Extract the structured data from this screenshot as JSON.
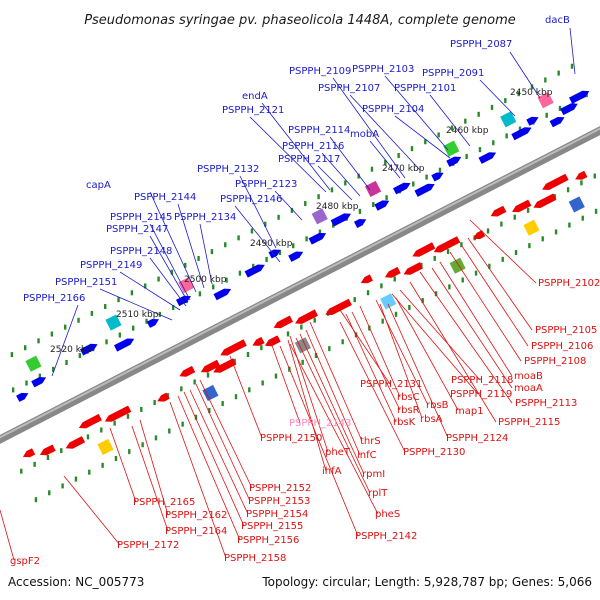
{
  "title": "Pseudomonas syringae pv. phaseolicola 1448A, complete genome",
  "footer": {
    "accession": "Accession: NC_005773",
    "topology": "Topology: circular; Length: 5,928,787 bp; Genes: 5,066"
  },
  "colors": {
    "forward_label": "#1a1acc",
    "reverse_label": "#dd1111",
    "rna_label": "#ff88bb",
    "forward_gene": "#0000ee",
    "reverse_gene": "#ee0000",
    "backbone": "#777777",
    "tick": "#2a8a2a"
  },
  "ruler_labels": [
    "2450 kbp",
    "2460 kbp",
    "2470 kbp",
    "2480 kbp",
    "2490 kbp",
    "2500 kbp",
    "2510 kbp",
    "2520 kbp"
  ],
  "upper_labels": [
    "dacB",
    "PSPPH_2087",
    "PSPPH_2091",
    "PSPPH_2103",
    "PSPPH_2109",
    "PSPPH_2107",
    "PSPPH_2101",
    "PSPPH_2104",
    "endA",
    "PSPPH_2121",
    "PSPPH_2114",
    "mobA",
    "PSPPH_2116",
    "PSPPH_2117",
    "PSPPH_2132",
    "PSPPH_2123",
    "capA",
    "PSPPH_2146",
    "PSPPH_2144",
    "PSPPH_2145",
    "PSPPH_2134",
    "PSPPH_2147",
    "PSPPH_2148",
    "PSPPH_2149",
    "PSPPH_2151",
    "PSPPH_2166"
  ],
  "lower_labels": [
    "PSPPH_2102",
    "PSPPH_2105",
    "PSPPH_2106",
    "PSPPH_2108",
    "moaB",
    "moaA",
    "PSPPH_2113",
    "PSPPH_2115",
    "PSPPH_2118",
    "PSPPH_2119",
    "PSPPH_2131",
    "rbsC",
    "rbsB",
    "rbsR",
    "rbsA",
    "map1",
    "rbsK",
    "PSPPH_2124",
    "PSPPH_2130",
    "PSPPH_2143",
    "thrS",
    "PSPPH_2150",
    "pheT",
    "infC",
    "ihfA",
    "rpmI",
    "rplT",
    "pheS",
    "PSPPH_2142",
    "PSPPH_2152",
    "PSPPH_2153",
    "PSPPH_2154",
    "PSPPH_2165",
    "PSPPH_2155",
    "PSPPH_2162",
    "PSPPH_2156",
    "PSPPH_2164",
    "PSPPH_2158",
    "PSPPH_2172",
    "gspF2"
  ]
}
